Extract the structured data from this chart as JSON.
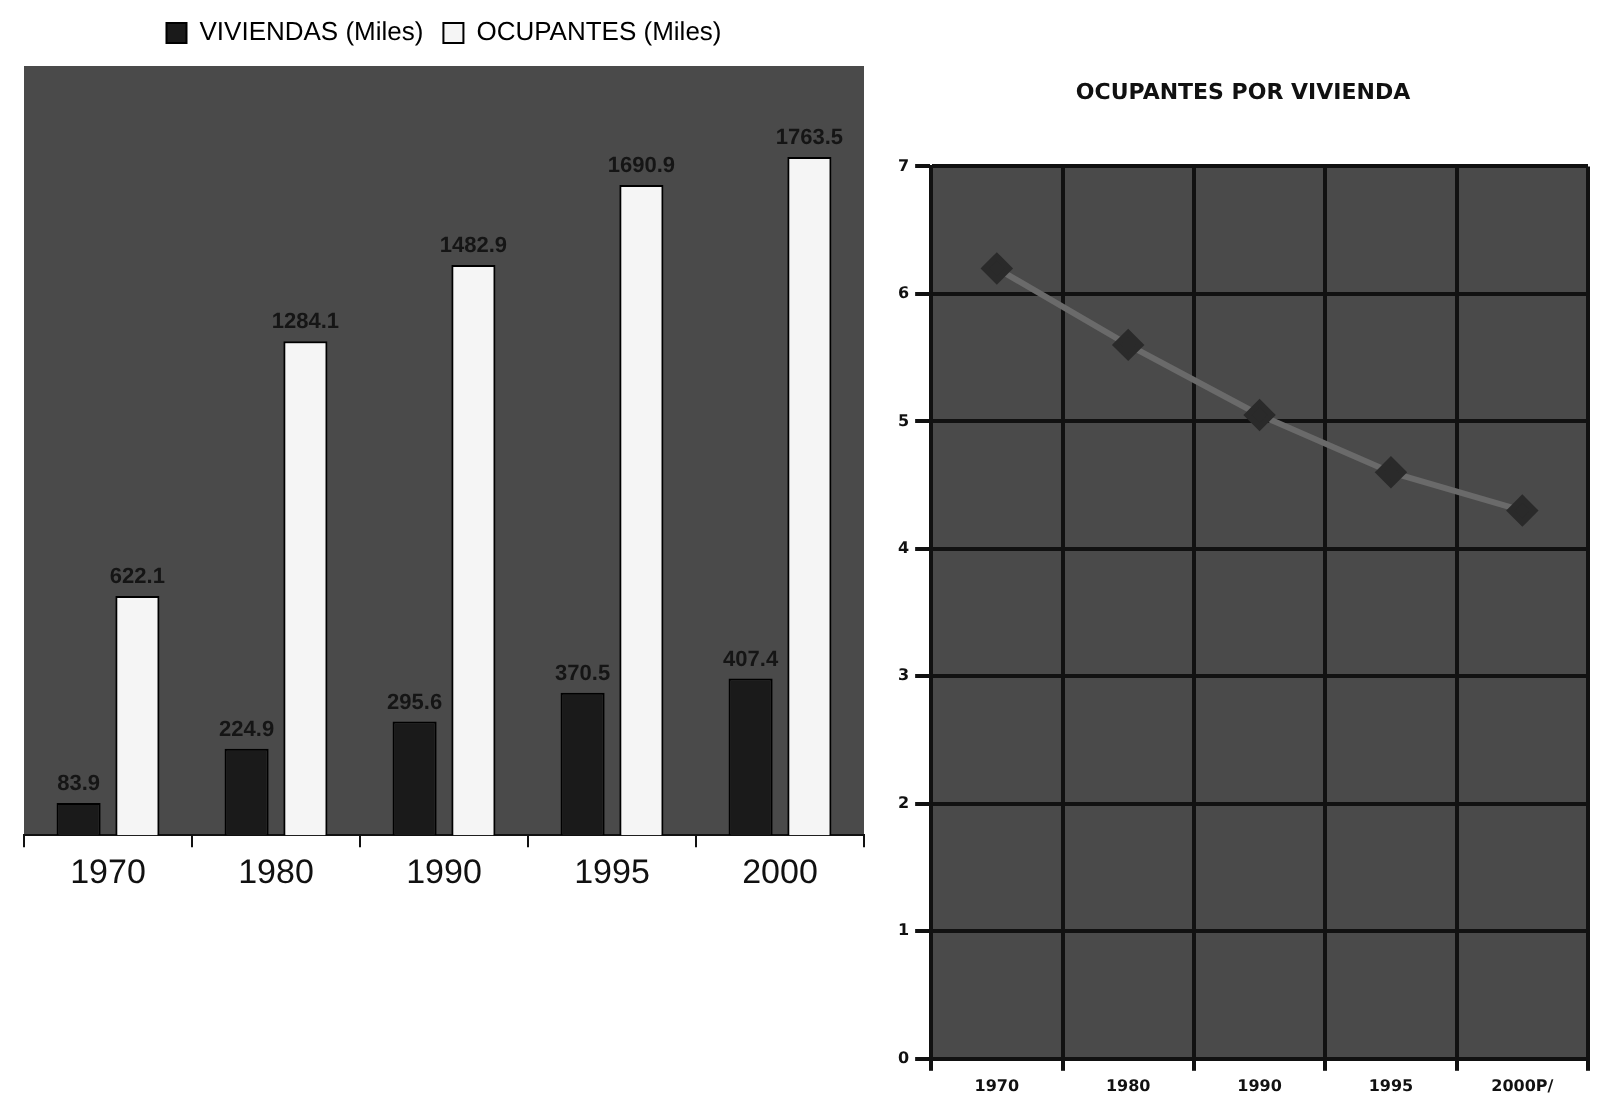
{
  "chart_data": [
    {
      "type": "bar",
      "categories": [
        "1970",
        "1980",
        "1990",
        "1995",
        "2000"
      ],
      "series": [
        {
          "name": "VIVIENDAS (Miles)",
          "color": "#1a1a1a",
          "values": [
            83.9,
            224.9,
            295.6,
            370.5,
            407.4
          ]
        },
        {
          "name": "OCUPANTES (Miles)",
          "color": "#f5f5f5",
          "values": [
            622.1,
            1284.1,
            1482.9,
            1690.9,
            1763.5
          ]
        }
      ],
      "data_labels": true,
      "legend": "top",
      "grid": false,
      "tick_labels": "x"
    },
    {
      "type": "line",
      "title": "OCUPANTES POR VIVIENDA",
      "categories": [
        "1970",
        "1980",
        "1990",
        "1995",
        "2000P/"
      ],
      "series": [
        {
          "color": "#6a6a6a",
          "values": [
            6.2,
            5.6,
            5.05,
            4.6,
            4.3
          ]
        }
      ],
      "ylim": [
        0,
        7
      ],
      "yticks": [
        0,
        1,
        2,
        3,
        4,
        5,
        6,
        7
      ],
      "grid": true,
      "marker": "diamond",
      "line_style": "solid"
    }
  ]
}
